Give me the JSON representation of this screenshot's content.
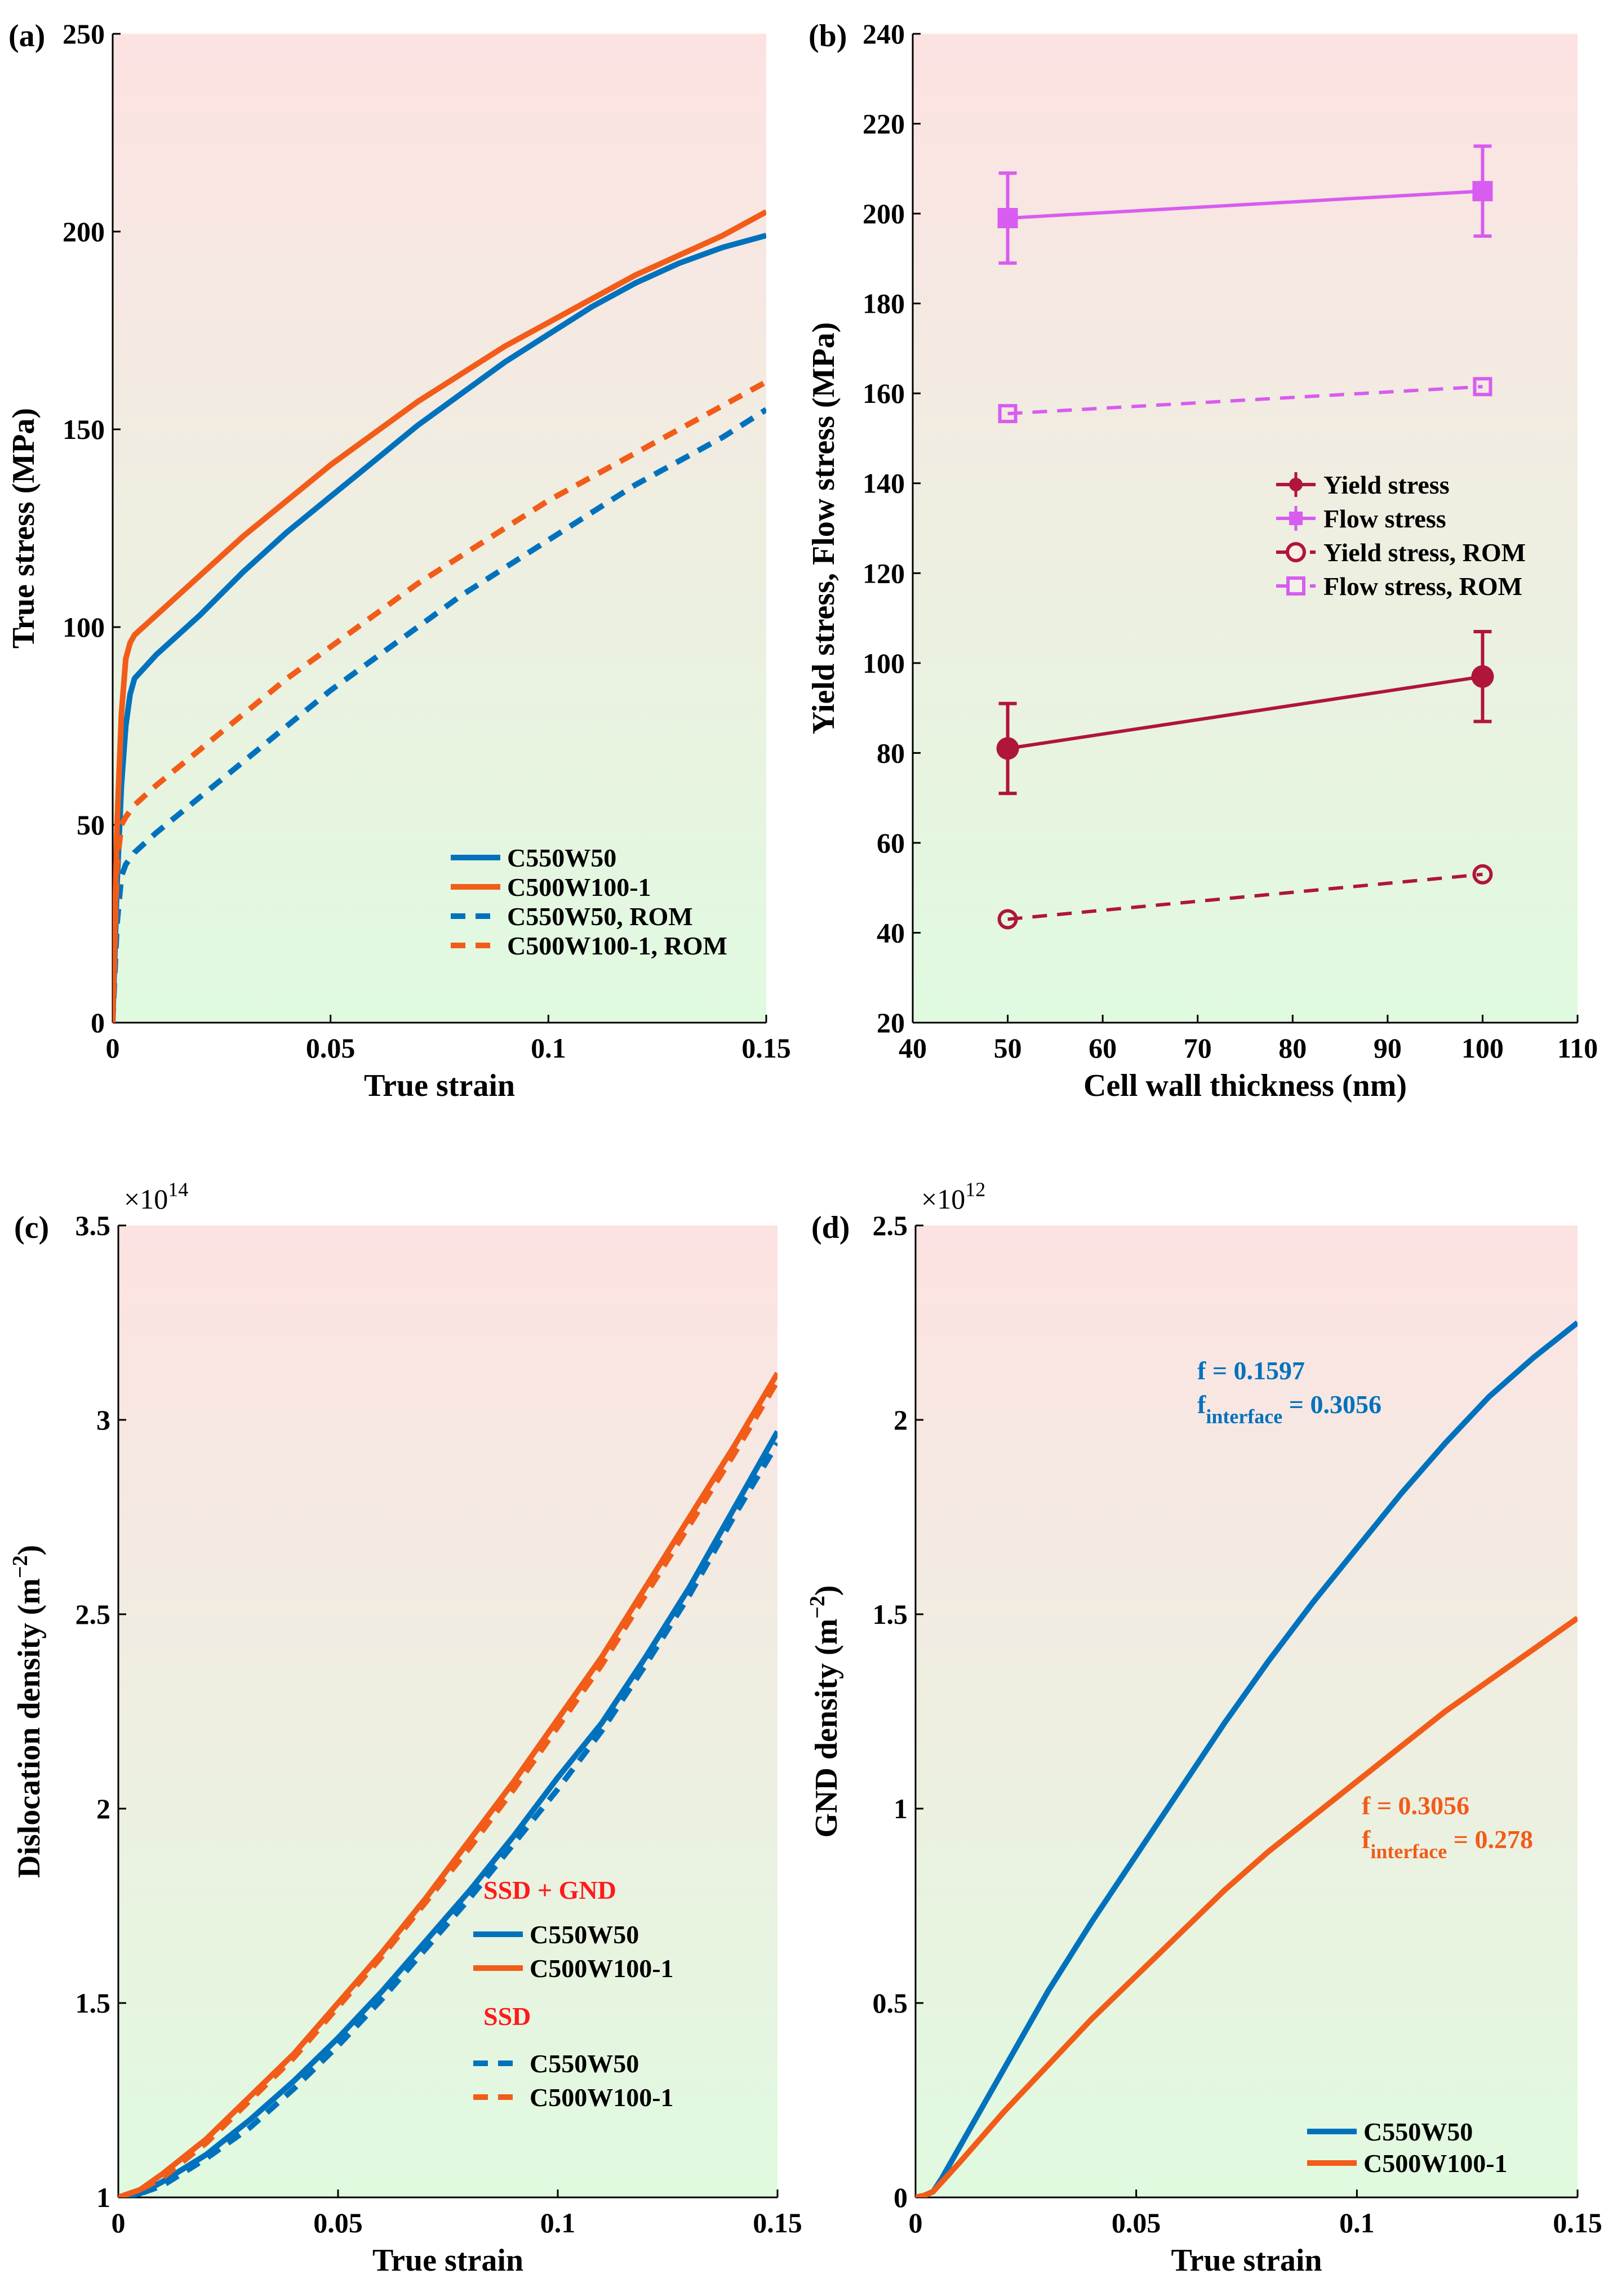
{
  "colors": {
    "blue": "#0072BD",
    "orange": "#F25C19",
    "crimson": "#B0153A",
    "magenta": "#D85CF0",
    "red_text": "#FF1A1A",
    "bg_top": "#FDE2E2",
    "bg_bottom": "#E0FAE0"
  },
  "chart_data": [
    {
      "id": "a",
      "type": "line",
      "panel_label": "(a)",
      "title": "",
      "xlabel": "True strain",
      "ylabel": "True stress (MPa)",
      "xlim": [
        0,
        0.15
      ],
      "ylim": [
        0,
        250
      ],
      "xticks": [
        0,
        0.05,
        0.1,
        0.15
      ],
      "xtick_labels": [
        "0",
        "0.05",
        "0.1",
        "0.15"
      ],
      "yticks": [
        0,
        50,
        100,
        150,
        200,
        250
      ],
      "ytick_labels": [
        "0",
        "50",
        "100",
        "150",
        "200",
        "250"
      ],
      "legend_position": "bottom-right",
      "series": [
        {
          "name": "C550W50",
          "color": "blue",
          "dash": "solid",
          "x": [
            0,
            0.001,
            0.002,
            0.003,
            0.004,
            0.005,
            0.01,
            0.02,
            0.03,
            0.04,
            0.05,
            0.06,
            0.07,
            0.08,
            0.09,
            0.1,
            0.11,
            0.12,
            0.13,
            0.14,
            0.15
          ],
          "y": [
            0,
            35,
            60,
            75,
            83,
            87,
            93,
            103,
            114,
            124,
            133,
            142,
            151,
            159,
            167,
            174,
            181,
            187,
            192,
            196,
            199
          ]
        },
        {
          "name": "C500W100-1",
          "color": "orange",
          "dash": "solid",
          "x": [
            0,
            0.001,
            0.002,
            0.003,
            0.004,
            0.005,
            0.01,
            0.02,
            0.03,
            0.04,
            0.05,
            0.06,
            0.07,
            0.08,
            0.09,
            0.1,
            0.11,
            0.12,
            0.13,
            0.14,
            0.15
          ],
          "y": [
            0,
            50,
            78,
            92,
            96,
            98,
            103,
            113,
            123,
            132,
            141,
            149,
            157,
            164,
            171,
            177,
            183,
            189,
            194,
            199,
            205
          ]
        },
        {
          "name": "C550W50, ROM",
          "color": "blue",
          "dash": "dashed",
          "x": [
            0,
            0.001,
            0.002,
            0.003,
            0.005,
            0.01,
            0.02,
            0.03,
            0.04,
            0.05,
            0.06,
            0.07,
            0.08,
            0.09,
            0.1,
            0.11,
            0.12,
            0.13,
            0.14,
            0.15
          ],
          "y": [
            0,
            25,
            37,
            40,
            43,
            48,
            57,
            66,
            75,
            84,
            92,
            100,
            108,
            115,
            122,
            129,
            136,
            142,
            148,
            155
          ]
        },
        {
          "name": "C500W100-1, ROM",
          "color": "orange",
          "dash": "dashed",
          "x": [
            0,
            0.001,
            0.002,
            0.003,
            0.005,
            0.01,
            0.02,
            0.03,
            0.04,
            0.05,
            0.06,
            0.07,
            0.08,
            0.09,
            0.1,
            0.11,
            0.12,
            0.13,
            0.14,
            0.15
          ],
          "y": [
            0,
            40,
            50,
            52,
            55,
            60,
            69,
            78,
            87,
            95,
            103,
            111,
            118,
            125,
            132,
            138,
            144,
            150,
            156,
            162
          ]
        }
      ]
    },
    {
      "id": "b",
      "type": "line",
      "panel_label": "(b)",
      "title": "",
      "xlabel": "Cell wall thickness (nm)",
      "ylabel": "Yield stress, Flow stress (MPa)",
      "xlim": [
        40,
        110
      ],
      "ylim": [
        20,
        240
      ],
      "xticks": [
        40,
        50,
        60,
        70,
        80,
        90,
        100,
        110
      ],
      "xtick_labels": [
        "40",
        "50",
        "60",
        "70",
        "80",
        "90",
        "100",
        "110"
      ],
      "yticks": [
        20,
        40,
        60,
        80,
        100,
        120,
        140,
        160,
        180,
        200,
        220,
        240
      ],
      "ytick_labels": [
        "20",
        "40",
        "60",
        "80",
        "100",
        "120",
        "140",
        "160",
        "180",
        "200",
        "220",
        "240"
      ],
      "legend_position": "center-right",
      "series": [
        {
          "name": "Yield stress",
          "color": "crimson",
          "dash": "solid",
          "marker": "filled-circle",
          "x": [
            50,
            100
          ],
          "y": [
            81,
            97
          ],
          "err": [
            10,
            10
          ]
        },
        {
          "name": "Flow stress",
          "color": "magenta",
          "dash": "solid",
          "marker": "filled-square",
          "x": [
            50,
            100
          ],
          "y": [
            199,
            205
          ],
          "err": [
            10,
            10
          ]
        },
        {
          "name": "Yield stress, ROM",
          "color": "crimson",
          "dash": "dashed",
          "marker": "open-circle",
          "x": [
            50,
            100
          ],
          "y": [
            43,
            53
          ]
        },
        {
          "name": "Flow stress, ROM",
          "color": "magenta",
          "dash": "dashed",
          "marker": "open-square",
          "x": [
            50,
            100
          ],
          "y": [
            155.5,
            161.5
          ]
        }
      ]
    },
    {
      "id": "c",
      "type": "line",
      "panel_label": "(c)",
      "title": "",
      "xlabel": "True strain",
      "ylabel": "Dislocation density (m",
      "ylabel_exp": "−2",
      "ylabel_close": ")",
      "multiplier": "×10",
      "multiplier_exp": "14",
      "xlim": [
        0,
        0.15
      ],
      "ylim": [
        1,
        3.5
      ],
      "xticks": [
        0,
        0.05,
        0.1,
        0.15
      ],
      "xtick_labels": [
        "0",
        "0.05",
        "0.1",
        "0.15"
      ],
      "yticks": [
        1,
        1.5,
        2,
        2.5,
        3,
        3.5
      ],
      "ytick_labels": [
        "1",
        "1.5",
        "2",
        "2.5",
        "3",
        "3.5"
      ],
      "legend_position": "bottom-right",
      "legend_headers": [
        "SSD + GND",
        "SSD"
      ],
      "series": [
        {
          "name": "C550W50",
          "group": "SSD + GND",
          "color": "blue",
          "dash": "solid",
          "x": [
            0,
            0.005,
            0.01,
            0.02,
            0.03,
            0.04,
            0.05,
            0.06,
            0.07,
            0.08,
            0.09,
            0.1,
            0.11,
            0.12,
            0.13,
            0.14,
            0.15
          ],
          "y": [
            1,
            1.01,
            1.04,
            1.11,
            1.2,
            1.3,
            1.41,
            1.53,
            1.66,
            1.79,
            1.93,
            2.08,
            2.22,
            2.39,
            2.57,
            2.77,
            2.97
          ]
        },
        {
          "name": "C500W100-1",
          "group": "SSD + GND",
          "color": "orange",
          "dash": "solid",
          "x": [
            0,
            0.005,
            0.01,
            0.02,
            0.03,
            0.04,
            0.05,
            0.06,
            0.07,
            0.08,
            0.09,
            0.1,
            0.11,
            0.12,
            0.13,
            0.14,
            0.15
          ],
          "y": [
            1,
            1.02,
            1.06,
            1.15,
            1.26,
            1.37,
            1.5,
            1.63,
            1.77,
            1.92,
            2.07,
            2.23,
            2.39,
            2.57,
            2.75,
            2.93,
            3.12
          ]
        },
        {
          "name": "C550W50",
          "group": "SSD",
          "color": "blue",
          "dash": "dashed",
          "x": [
            0,
            0.005,
            0.01,
            0.02,
            0.03,
            0.04,
            0.05,
            0.06,
            0.07,
            0.08,
            0.09,
            0.1,
            0.11,
            0.12,
            0.13,
            0.14,
            0.15
          ],
          "y": [
            1,
            1.01,
            1.03,
            1.1,
            1.18,
            1.28,
            1.39,
            1.51,
            1.64,
            1.77,
            1.91,
            2.05,
            2.2,
            2.37,
            2.55,
            2.75,
            2.94
          ]
        },
        {
          "name": "C500W100-1",
          "group": "SSD",
          "color": "orange",
          "dash": "dashed",
          "x": [
            0,
            0.005,
            0.01,
            0.02,
            0.03,
            0.04,
            0.05,
            0.06,
            0.07,
            0.08,
            0.09,
            0.1,
            0.11,
            0.12,
            0.13,
            0.14,
            0.15
          ],
          "y": [
            1,
            1.02,
            1.05,
            1.14,
            1.25,
            1.36,
            1.49,
            1.62,
            1.76,
            1.9,
            2.05,
            2.21,
            2.37,
            2.55,
            2.73,
            2.91,
            3.1
          ]
        }
      ]
    },
    {
      "id": "d",
      "type": "line",
      "panel_label": "(d)",
      "title": "",
      "xlabel": "True strain",
      "ylabel": "GND density (m",
      "ylabel_exp": "−2",
      "ylabel_close": ")",
      "multiplier": "×10",
      "multiplier_exp": "12",
      "xlim": [
        0,
        0.15
      ],
      "ylim": [
        0,
        2.5
      ],
      "xticks": [
        0,
        0.05,
        0.1,
        0.15
      ],
      "xtick_labels": [
        "0",
        "0.05",
        "0.1",
        "0.15"
      ],
      "yticks": [
        0,
        0.5,
        1,
        1.5,
        2,
        2.5
      ],
      "ytick_labels": [
        "0",
        "0.5",
        "1",
        "1.5",
        "2",
        "2.5"
      ],
      "legend_position": "bottom-right",
      "annotations": [
        {
          "f": "f = 0.1597",
          "fi_base": "f",
          "fi_sub": "interface",
          "fi_val": " = 0.3056",
          "color": "blue"
        },
        {
          "f": "f = 0.3056",
          "fi_base": "f",
          "fi_sub": "interface",
          "fi_val": " = 0.278",
          "color": "orange"
        }
      ],
      "series": [
        {
          "name": "C550W50",
          "color": "blue",
          "dash": "solid",
          "x": [
            0,
            0.002,
            0.004,
            0.006,
            0.01,
            0.02,
            0.03,
            0.04,
            0.05,
            0.06,
            0.07,
            0.08,
            0.09,
            0.1,
            0.11,
            0.12,
            0.13,
            0.14,
            0.15
          ],
          "y": [
            0,
            0.005,
            0.015,
            0.05,
            0.13,
            0.33,
            0.53,
            0.71,
            0.88,
            1.05,
            1.22,
            1.38,
            1.53,
            1.67,
            1.81,
            1.94,
            2.06,
            2.16,
            2.25
          ]
        },
        {
          "name": "C500W100-1",
          "color": "orange",
          "dash": "solid",
          "x": [
            0,
            0.002,
            0.004,
            0.006,
            0.01,
            0.02,
            0.03,
            0.04,
            0.05,
            0.06,
            0.07,
            0.08,
            0.09,
            0.1,
            0.11,
            0.12,
            0.13,
            0.14,
            0.15
          ],
          "y": [
            0,
            0.005,
            0.015,
            0.04,
            0.09,
            0.22,
            0.34,
            0.46,
            0.57,
            0.68,
            0.79,
            0.89,
            0.98,
            1.07,
            1.16,
            1.25,
            1.33,
            1.41,
            1.49
          ]
        }
      ]
    }
  ]
}
